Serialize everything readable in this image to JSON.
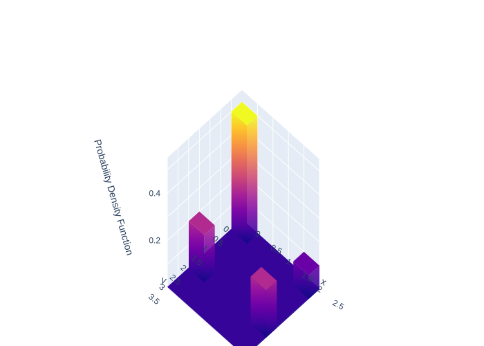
{
  "chart_data": {
    "type": "3d-bar",
    "xlabel": "x",
    "ylabel": "y",
    "zlabel": "Probability Density Function",
    "x_ticks": [
      "0",
      "0.5",
      "1",
      "1.5",
      "2",
      "2.5"
    ],
    "y_ticks": [
      "0",
      "0.5",
      "1",
      "1.5",
      "2",
      "2.5",
      "3",
      "3.5"
    ],
    "z_ticks": [
      "0.2",
      "0.4"
    ],
    "xlim": [
      0,
      2.5
    ],
    "ylim": [
      0,
      3.5
    ],
    "zlim": [
      0,
      0.55
    ],
    "bars": [
      {
        "x": 0,
        "y": 0,
        "value": 0.5
      },
      {
        "x": 0,
        "y": 2,
        "value": 0.2
      },
      {
        "x": 2,
        "y": 0,
        "value": 0.1
      },
      {
        "x": 2,
        "y": 2,
        "value": 0.2
      }
    ],
    "floor_value": 0,
    "colorscale": [
      "#0d0887",
      "#46039f",
      "#7201a8",
      "#9c179e",
      "#bd3786",
      "#d8576b",
      "#ed7953",
      "#fb9f3a",
      "#fdca26",
      "#f0f921"
    ],
    "grid": true,
    "scene_background": "#e5ecf6",
    "grid_color": "#ffffff"
  }
}
